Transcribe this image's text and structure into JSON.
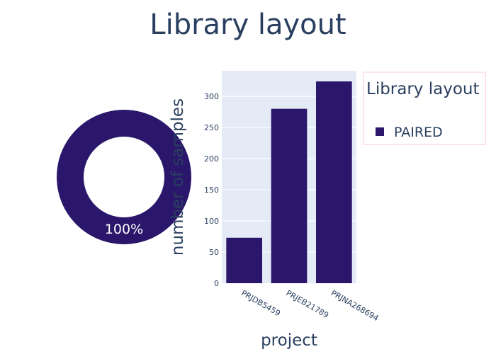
{
  "chart_data": [
    {
      "type": "pie",
      "hole": true,
      "labels": [
        "PAIRED"
      ],
      "values": [
        100
      ],
      "slice_text": [
        "100%"
      ],
      "colors": [
        "#2a176b"
      ]
    },
    {
      "type": "bar",
      "categories": [
        "PRJDB5459",
        "PRJEB21789",
        "PRJNA268694"
      ],
      "values": [
        73,
        280,
        324
      ],
      "xlabel": "project",
      "ylabel": "number of samples",
      "ylim": [
        0,
        341
      ],
      "yticks": [
        0,
        50,
        100,
        150,
        200,
        250,
        300
      ],
      "grid": true,
      "color": "#2a176b",
      "plot_bg": "#e5ebf6"
    }
  ],
  "title": "Library layout",
  "legend": {
    "title": "Library layout",
    "items": [
      {
        "label": "PAIRED",
        "color": "#2a176b"
      }
    ],
    "position": "top-right"
  }
}
